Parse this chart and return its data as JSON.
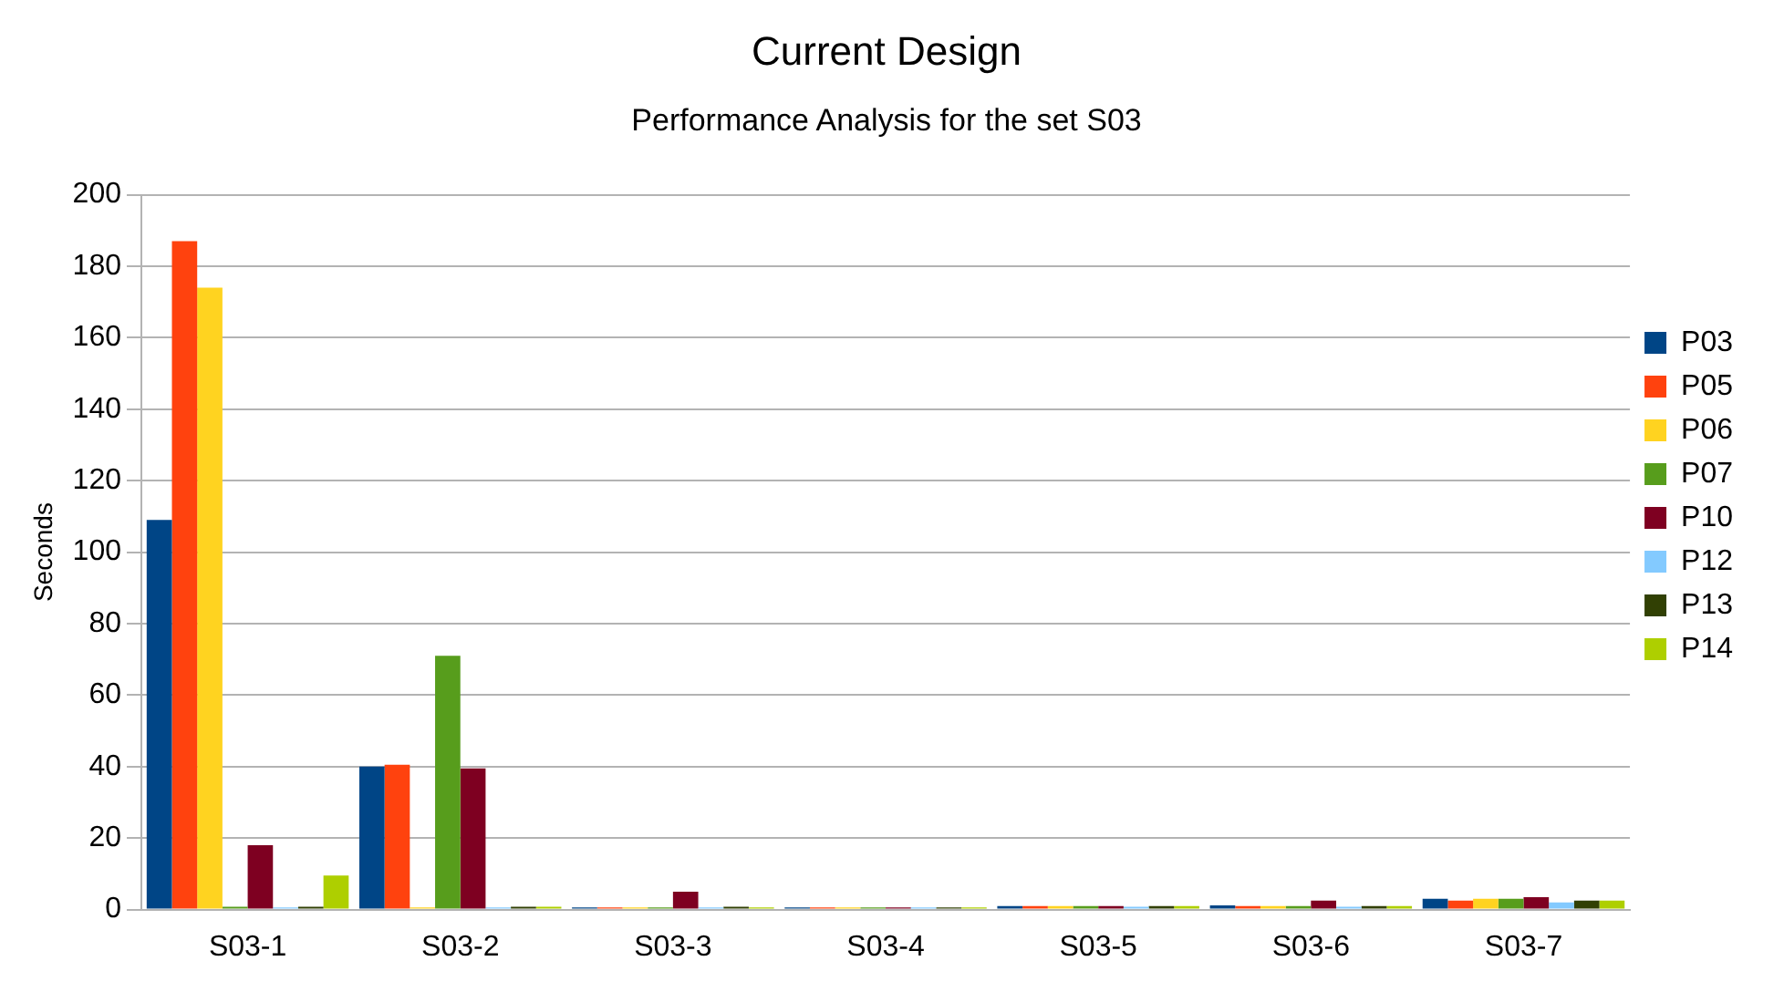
{
  "chart_data": {
    "type": "bar",
    "title": "Current Design",
    "subtitle": "Performance Analysis for the set S03",
    "ylabel": "Seconds",
    "categories": [
      "S03-1",
      "S03-2",
      "S03-3",
      "S03-4",
      "S03-5",
      "S03-6",
      "S03-7"
    ],
    "series": [
      {
        "name": "P03",
        "color": "#004586",
        "values": [
          109,
          40,
          0.6,
          0.6,
          1,
          1.2,
          3
        ]
      },
      {
        "name": "P05",
        "color": "#ff420e",
        "values": [
          187,
          40.5,
          0.6,
          0.6,
          1,
          1,
          2.5
        ]
      },
      {
        "name": "P06",
        "color": "#ffd320",
        "values": [
          174,
          0.6,
          0.6,
          0.6,
          1,
          1,
          3
        ]
      },
      {
        "name": "P07",
        "color": "#579d1c",
        "values": [
          0.8,
          71,
          0.6,
          0.6,
          1,
          1,
          3
        ]
      },
      {
        "name": "P10",
        "color": "#7e0021",
        "values": [
          18,
          39.5,
          5,
          0.6,
          1,
          2.5,
          3.5
        ]
      },
      {
        "name": "P12",
        "color": "#83caff",
        "values": [
          0.6,
          0.6,
          0.6,
          0.6,
          0.8,
          0.8,
          2
        ]
      },
      {
        "name": "P13",
        "color": "#314004",
        "values": [
          0.8,
          0.8,
          0.8,
          0.6,
          1,
          1,
          2.5
        ]
      },
      {
        "name": "P14",
        "color": "#aecf00",
        "values": [
          9.5,
          0.8,
          0.6,
          0.6,
          1,
          1,
          2.5
        ]
      }
    ],
    "ylim": [
      0,
      200
    ],
    "yticks": [
      0,
      20,
      40,
      60,
      80,
      100,
      120,
      140,
      160,
      180,
      200
    ],
    "grid": "y",
    "legend": "right"
  }
}
